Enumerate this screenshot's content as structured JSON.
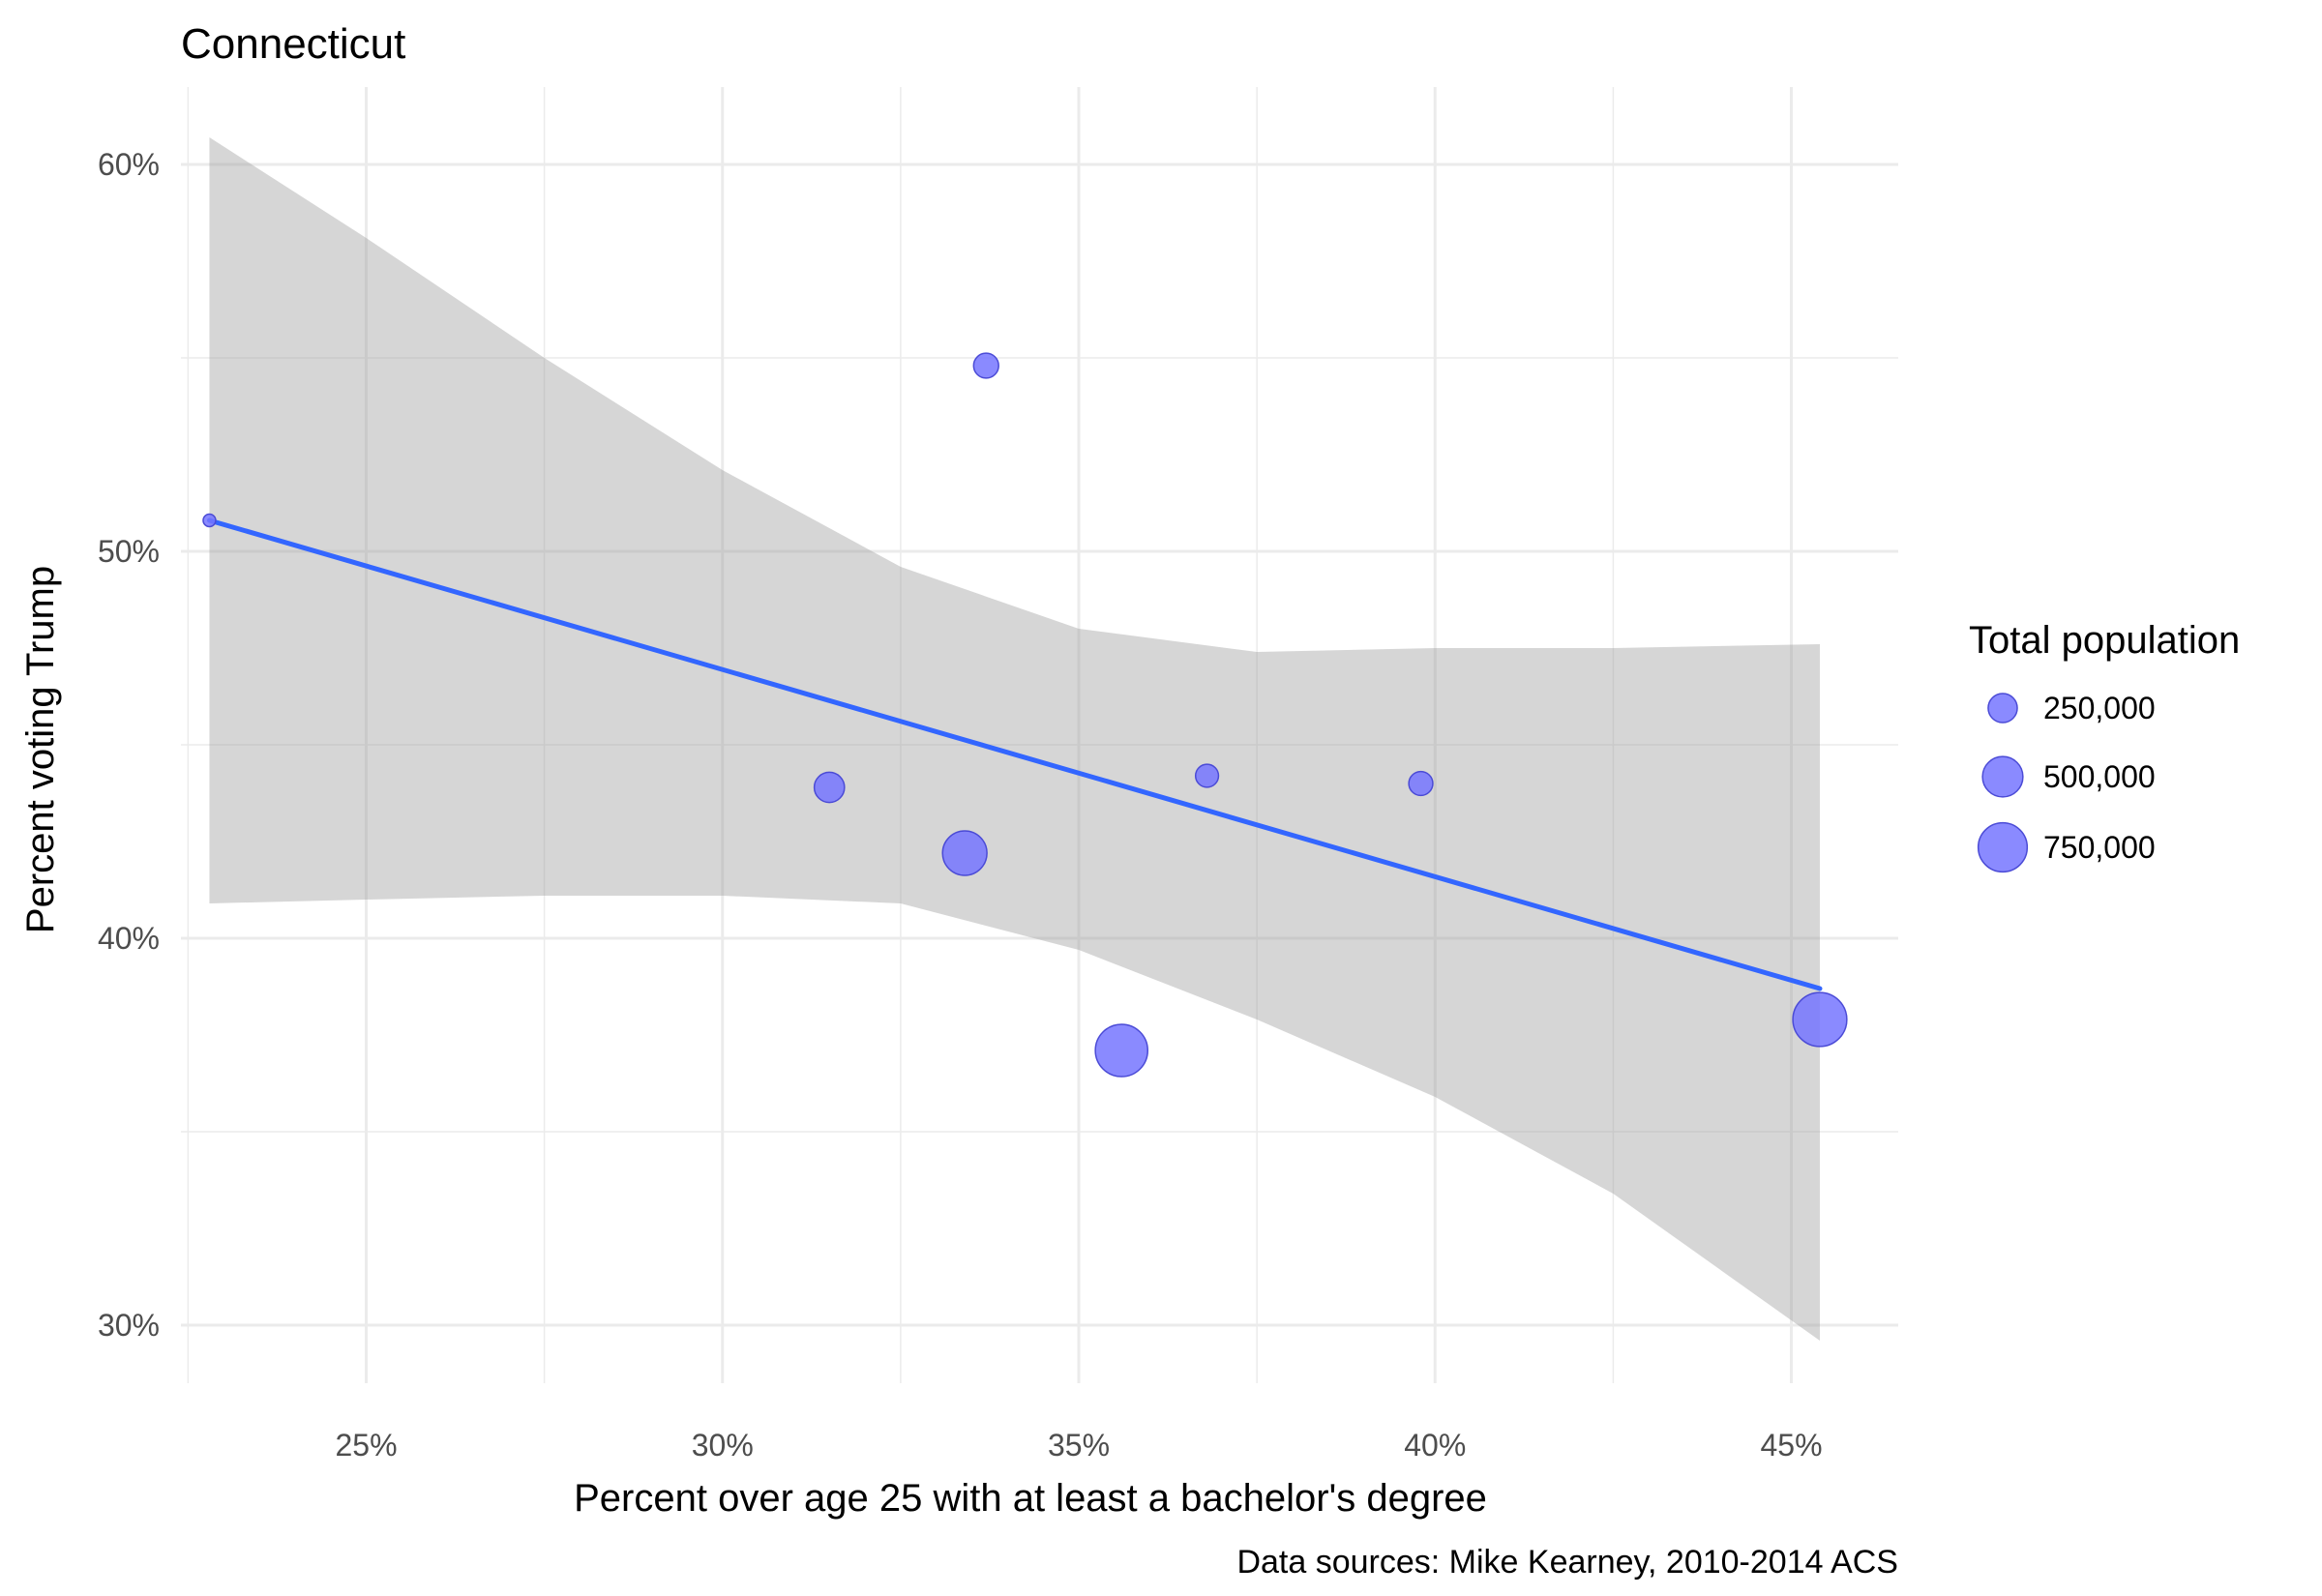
{
  "chart_data": {
    "type": "scatter",
    "title": "Connecticut",
    "xlabel": "Percent over age 25 with at least a bachelor's degree",
    "ylabel": "Percent voting Trump",
    "caption": "Data sources: Mike Kearney, 2010-2014 ACS",
    "xlim": [
      22.4,
      46.5
    ],
    "ylim": [
      28.5,
      62.0
    ],
    "x_ticks": [
      25,
      30,
      35,
      40,
      45
    ],
    "x_tick_labels": [
      "25%",
      "30%",
      "35%",
      "40%",
      "45%"
    ],
    "y_ticks": [
      30,
      40,
      50,
      60
    ],
    "y_tick_labels": [
      "30%",
      "40%",
      "50%",
      "60%"
    ],
    "grid": true,
    "points": [
      {
        "x": 22.8,
        "y": 50.8,
        "population": 38000
      },
      {
        "x": 33.7,
        "y": 54.8,
        "population": 180000
      },
      {
        "x": 31.5,
        "y": 43.9,
        "population": 270000
      },
      {
        "x": 33.4,
        "y": 42.2,
        "population": 610000
      },
      {
        "x": 36.8,
        "y": 44.2,
        "population": 150000
      },
      {
        "x": 39.8,
        "y": 44.0,
        "population": 165000
      },
      {
        "x": 35.6,
        "y": 37.1,
        "population": 860000
      },
      {
        "x": 45.4,
        "y": 37.9,
        "population": 915000
      }
    ],
    "trend_line": {
      "x": [
        22.8,
        45.4
      ],
      "y": [
        50.8,
        38.7
      ]
    },
    "confidence_band": {
      "x": [
        22.8,
        25,
        27.5,
        30,
        32.5,
        35,
        37.5,
        40,
        42.5,
        45.4
      ],
      "upper": [
        60.7,
        58.1,
        55.0,
        52.1,
        49.6,
        48.0,
        47.4,
        47.5,
        47.5,
        47.6
      ],
      "lower": [
        40.9,
        41.0,
        41.1,
        41.1,
        40.9,
        39.7,
        37.9,
        35.9,
        33.4,
        29.6
      ]
    },
    "size_legend": {
      "title": "Total population",
      "values": [
        250000,
        500000,
        750000
      ],
      "labels": [
        "250,000",
        "500,000",
        "750,000"
      ]
    },
    "colors": {
      "point_fill": "#7575ff",
      "point_stroke": "#4b4bd6",
      "trend_line": "#3366ff",
      "band": "#999999",
      "grid": "#ebebeb",
      "background": "#ffffff"
    }
  }
}
